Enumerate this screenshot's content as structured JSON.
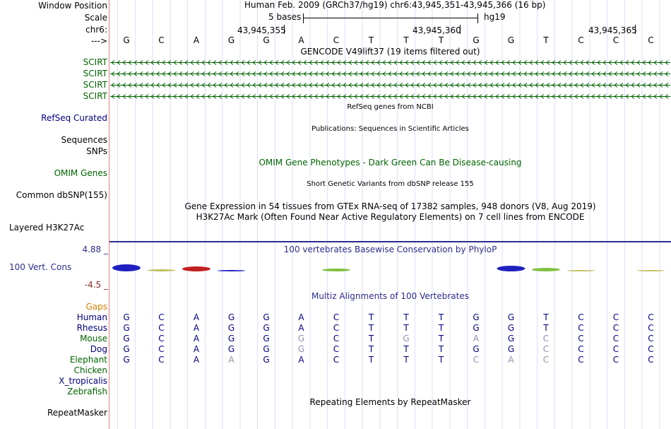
{
  "header": {
    "window_position_label": "Window Position",
    "scale_label": "Scale",
    "chrom_label": "chr6:",
    "strand_label": "--->",
    "assembly_text": "Human Feb. 2009 (GRCh37/hg19)   chr6:43,945,351-43,945,366 (16 bp)",
    "scale_text": "5 bases",
    "scale_db": "hg19",
    "pos_ticks": [
      "43,945,355",
      "43,945,360",
      "43,945,365"
    ]
  },
  "bases": [
    "G",
    "C",
    "A",
    "G",
    "G",
    "A",
    "C",
    "T",
    "T",
    "T",
    "G",
    "G",
    "T",
    "C",
    "C",
    "C"
  ],
  "tracks": {
    "gencode_title": "GENCODE V49lift37 (19 items filtered out)",
    "gencode_items": [
      "SCIRT",
      "SCIRT",
      "SCIRT",
      "SCIRT"
    ],
    "refseq_title": "RefSeq genes from NCBI",
    "refseq_label": "RefSeq Curated",
    "pubs_title": "Publications: Sequences in Scientific Articles",
    "sequences_label": "Sequences",
    "snps_label": "SNPs",
    "omim_title": "OMIM Gene Phenotypes - Dark Green Can Be Disease-causing",
    "omim_label": "OMIM Genes",
    "dbsnp_title": "Short Genetic Variants from dbSNP release 155",
    "dbsnp_label": "Common dbSNP(155)",
    "gtex_title": "Gene Expression in 54 tissues from GTEx RNA-seq of 17382 samples, 948 donors (V8, Aug 2019)",
    "h3k27_title": "H3K27Ac Mark (Often Found Near Active Regulatory Elements) on 7 cell lines from ENCODE",
    "h3k27_label": "Layered H3K27Ac",
    "cons_title": "100 vertebrates Basewise Conservation by PhyloP",
    "cons_label": "100 Vert. Cons",
    "cons_max": "4.88 _",
    "cons_min": "-4.5 _",
    "multiz_title": "Multiz Alignments of 100 Vertebrates",
    "gaps_label": "Gaps",
    "repeat_title": "Repeating Elements by RepeatMasker",
    "repeat_label": "RepeatMasker"
  },
  "alignment": [
    {
      "species": "Human",
      "color": "#000080",
      "bases": [
        "G",
        "C",
        "A",
        "G",
        "G",
        "A",
        "C",
        "T",
        "T",
        "T",
        "G",
        "G",
        "T",
        "C",
        "C",
        "C"
      ],
      "dim": []
    },
    {
      "species": "Rhesus",
      "color": "#000080",
      "bases": [
        "G",
        "C",
        "A",
        "G",
        "G",
        "A",
        "C",
        "T",
        "T",
        "T",
        "G",
        "G",
        "T",
        "C",
        "C",
        "C"
      ],
      "dim": []
    },
    {
      "species": "Mouse",
      "color": "#006400",
      "bases": [
        "G",
        "C",
        "A",
        "G",
        "G",
        "G",
        "C",
        "T",
        "G",
        "T",
        "A",
        "G",
        "C",
        "C",
        "C",
        "C"
      ],
      "dim": [
        5,
        8,
        10,
        12
      ]
    },
    {
      "species": "Dog",
      "color": "#000080",
      "bases": [
        "G",
        "C",
        "A",
        "G",
        "G",
        "G",
        "C",
        "T",
        "T",
        "T",
        "G",
        "G",
        "C",
        "C",
        "C",
        "C"
      ],
      "dim": [
        5,
        12
      ]
    },
    {
      "species": "Elephant",
      "color": "#006400",
      "bases": [
        "G",
        "C",
        "A",
        "A",
        "G",
        "A",
        "C",
        "T",
        "T",
        "T",
        "C",
        "A",
        "C",
        "C",
        "C",
        "C"
      ],
      "dim": [
        3,
        10,
        11,
        12
      ]
    },
    {
      "species": "Chicken",
      "color": "#006400",
      "bases": [],
      "dim": []
    },
    {
      "species": "X_tropicalis",
      "color": "#000080",
      "bases": [],
      "dim": []
    },
    {
      "species": "Zebrafish",
      "color": "#006400",
      "bases": [],
      "dim": []
    }
  ],
  "colors": {
    "gene_green": "#006400",
    "refseq_navy": "#000080",
    "cons_blue": "#2c2c8c",
    "cons_red": "#8c2c2c",
    "gaps_orange": "#d08000",
    "ruler_red": "#e08080",
    "grid_blue": "#c8c8ff"
  }
}
